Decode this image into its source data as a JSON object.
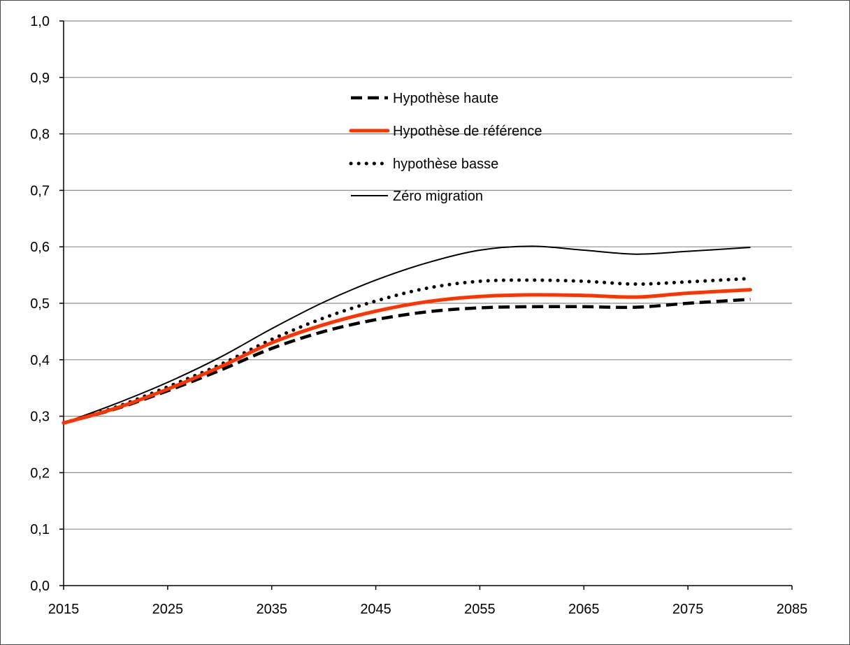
{
  "chart_data": {
    "type": "line",
    "title": "",
    "xlabel": "",
    "ylabel": "",
    "xlim": [
      2015,
      2085
    ],
    "ylim": [
      0.0,
      1.0
    ],
    "x_ticks": [
      2015,
      2025,
      2035,
      2045,
      2055,
      2065,
      2075,
      2085
    ],
    "x_tick_labels": [
      "2015",
      "2025",
      "2035",
      "2045",
      "2055",
      "2065",
      "2075",
      "2085"
    ],
    "y_ticks": [
      0.0,
      0.1,
      0.2,
      0.3,
      0.4,
      0.5,
      0.6,
      0.7,
      0.8,
      0.9,
      1.0
    ],
    "y_tick_labels": [
      "0,0",
      "0,1",
      "0,2",
      "0,3",
      "0,4",
      "0,5",
      "0,6",
      "0,7",
      "0,8",
      "0,9",
      "1,0"
    ],
    "grid": "horizontal",
    "legend_position": "top-center",
    "series": [
      {
        "name": "Hypothèse haute",
        "style": "dashed",
        "color": "#000000",
        "x": [
          2015,
          2020,
          2025,
          2030,
          2035,
          2040,
          2045,
          2050,
          2055,
          2060,
          2065,
          2070,
          2075,
          2081
        ],
        "values": [
          0.288,
          0.313,
          0.345,
          0.381,
          0.42,
          0.45,
          0.471,
          0.485,
          0.492,
          0.494,
          0.494,
          0.493,
          0.5,
          0.507
        ]
      },
      {
        "name": "Hypothèse de référence",
        "style": "solid-thick",
        "color": "#ff3300",
        "x": [
          2015,
          2020,
          2025,
          2030,
          2035,
          2040,
          2045,
          2050,
          2055,
          2060,
          2065,
          2070,
          2075,
          2081
        ],
        "values": [
          0.288,
          0.314,
          0.348,
          0.387,
          0.43,
          0.462,
          0.486,
          0.503,
          0.512,
          0.515,
          0.514,
          0.511,
          0.518,
          0.524
        ]
      },
      {
        "name": "hypothèse basse",
        "style": "dotted",
        "color": "#000000",
        "x": [
          2015,
          2020,
          2025,
          2030,
          2035,
          2040,
          2045,
          2050,
          2055,
          2060,
          2065,
          2070,
          2075,
          2081
        ],
        "values": [
          0.288,
          0.316,
          0.352,
          0.391,
          0.436,
          0.474,
          0.504,
          0.527,
          0.539,
          0.541,
          0.539,
          0.534,
          0.538,
          0.544
        ]
      },
      {
        "name": "Zéro migration",
        "style": "solid-thin",
        "color": "#000000",
        "x": [
          2015,
          2020,
          2025,
          2030,
          2035,
          2040,
          2045,
          2050,
          2055,
          2060,
          2065,
          2070,
          2075,
          2081
        ],
        "values": [
          0.288,
          0.322,
          0.36,
          0.404,
          0.455,
          0.502,
          0.541,
          0.572,
          0.594,
          0.601,
          0.594,
          0.587,
          0.592,
          0.599
        ]
      }
    ]
  }
}
